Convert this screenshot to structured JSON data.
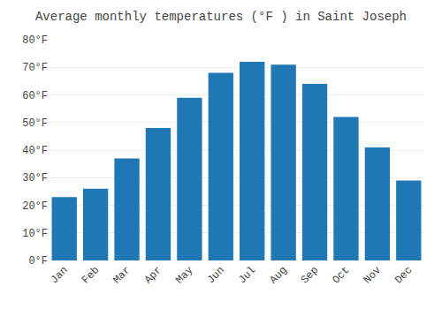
{
  "chart_data": {
    "type": "bar",
    "title": "Average monthly temperatures (°F ) in Saint Joseph",
    "categories": [
      "Jan",
      "Feb",
      "Mar",
      "Apr",
      "May",
      "Jun",
      "Jul",
      "Aug",
      "Sep",
      "Oct",
      "Nov",
      "Dec"
    ],
    "values": [
      23,
      26,
      37,
      48,
      59,
      68,
      72,
      71,
      64,
      52,
      41,
      29
    ],
    "ylim": [
      0,
      80
    ],
    "yticks": [
      {
        "value": 0,
        "label": "0°F"
      },
      {
        "value": 10,
        "label": "10°F"
      },
      {
        "value": 20,
        "label": "20°F"
      },
      {
        "value": 30,
        "label": "30°F"
      },
      {
        "value": 40,
        "label": "40°F"
      },
      {
        "value": 50,
        "label": "50°F"
      },
      {
        "value": 60,
        "label": "60°F"
      },
      {
        "value": 70,
        "label": "70°F"
      },
      {
        "value": 80,
        "label": "80°F"
      }
    ],
    "grid": true
  }
}
